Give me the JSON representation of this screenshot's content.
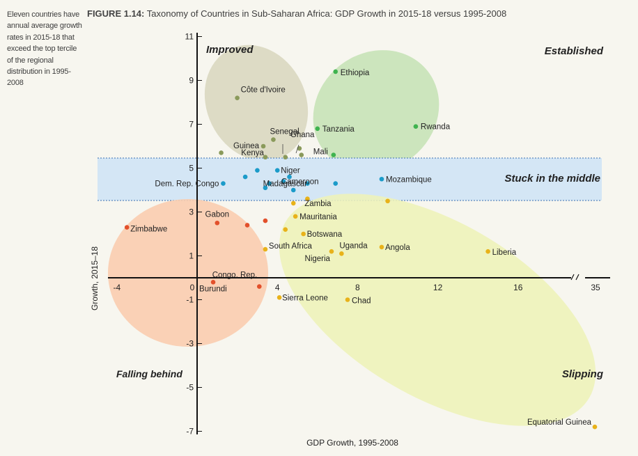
{
  "sidenote": "Eleven countries have annual average growth rates in 2015-18 that exceed the top tercile of the regional distribution in 1995-2008",
  "figure": {
    "label": "FIGURE 1.14:",
    "title": "Taxonomy of Countries in Sub-Saharan Africa: GDP Growth in 2015-18 versus 1995-2008"
  },
  "chart_data": {
    "type": "scatter",
    "xlabel": "GDP Growth, 1995-2008",
    "ylabel": "Growth, 2015–18",
    "x_ticks": [
      "-4",
      "0",
      "4",
      "8",
      "12",
      "16",
      "35"
    ],
    "y_ticks": [
      "11",
      "9",
      "7",
      "5",
      "3",
      "1",
      "-1",
      "-3",
      "-5",
      "-7"
    ],
    "quadrants": [
      "Improved",
      "Established",
      "Stuck in the middle",
      "Falling behind",
      "Slipping"
    ],
    "colors": {
      "improved": "#8a9a5b",
      "established": "#3fb34f",
      "stuck": "#1b9bc9",
      "falling": "#e2502b",
      "slipping": "#e8b21a"
    },
    "points": [
      {
        "name": "Ethiopia",
        "x": 6.9,
        "y": 9.4,
        "group": "established"
      },
      {
        "name": "Rwanda",
        "x": 10.9,
        "y": 6.9,
        "group": "established"
      },
      {
        "name": "Tanzania",
        "x": 6.0,
        "y": 6.8,
        "group": "established"
      },
      {
        "name": "Mali",
        "x": 6.8,
        "y": 5.6,
        "group": "established"
      },
      {
        "name": "Côte d'Ivoire",
        "x": 2.0,
        "y": 8.2,
        "group": "improved"
      },
      {
        "name": "Senegal",
        "x": 3.8,
        "y": 6.3,
        "group": "improved"
      },
      {
        "name": "Guinea",
        "x": 3.3,
        "y": 6.0,
        "group": "improved"
      },
      {
        "name": "Ghana",
        "x": 5.1,
        "y": 5.9,
        "group": "improved"
      },
      {
        "name": "Kenya",
        "x": 3.4,
        "y": 5.5,
        "group": "improved"
      },
      {
        "name": "",
        "x": 1.2,
        "y": 5.7,
        "group": "improved"
      },
      {
        "name": "",
        "x": 4.4,
        "y": 5.5,
        "group": "improved"
      },
      {
        "name": "",
        "x": 5.2,
        "y": 5.6,
        "group": "improved"
      },
      {
        "name": "Niger",
        "x": 4.0,
        "y": 4.9,
        "group": "stuck"
      },
      {
        "name": "Dem. Rep. Congo",
        "x": 1.3,
        "y": 4.3,
        "group": "stuck"
      },
      {
        "name": "Madagascar",
        "x": 3.6,
        "y": 4.3,
        "group": "stuck"
      },
      {
        "name": "Cameroon",
        "x": 4.3,
        "y": 4.4,
        "group": "stuck"
      },
      {
        "name": "Mozambique",
        "x": 9.2,
        "y": 4.5,
        "group": "stuck"
      },
      {
        "name": "",
        "x": 2.4,
        "y": 4.6,
        "group": "stuck"
      },
      {
        "name": "",
        "x": 3.0,
        "y": 4.9,
        "group": "stuck"
      },
      {
        "name": "",
        "x": 4.6,
        "y": 4.6,
        "group": "stuck"
      },
      {
        "name": "",
        "x": 5.5,
        "y": 4.3,
        "group": "stuck"
      },
      {
        "name": "",
        "x": 3.4,
        "y": 4.1,
        "group": "stuck"
      },
      {
        "name": "",
        "x": 4.8,
        "y": 4.0,
        "group": "stuck"
      },
      {
        "name": "",
        "x": 6.9,
        "y": 4.3,
        "group": "stuck"
      },
      {
        "name": "Zimbabwe",
        "x": -3.5,
        "y": 2.3,
        "group": "falling"
      },
      {
        "name": "Gabon",
        "x": 1.0,
        "y": 2.5,
        "group": "falling"
      },
      {
        "name": "Burundi",
        "x": 0.8,
        "y": -0.2,
        "group": "falling"
      },
      {
        "name": "Congo, Rep.",
        "x": 3.1,
        "y": -0.4,
        "group": "falling"
      },
      {
        "name": "",
        "x": 2.5,
        "y": 2.4,
        "group": "falling"
      },
      {
        "name": "",
        "x": 3.4,
        "y": 2.6,
        "group": "falling"
      },
      {
        "name": "Zambia",
        "x": 4.8,
        "y": 3.4,
        "group": "slipping"
      },
      {
        "name": "Mauritania",
        "x": 4.9,
        "y": 2.8,
        "group": "slipping"
      },
      {
        "name": "Botswana",
        "x": 5.3,
        "y": 2.0,
        "group": "slipping"
      },
      {
        "name": "South Africa",
        "x": 3.4,
        "y": 1.3,
        "group": "slipping"
      },
      {
        "name": "Uganda",
        "x": 7.2,
        "y": 1.1,
        "group": "slipping"
      },
      {
        "name": "Nigeria",
        "x": 6.7,
        "y": 1.2,
        "group": "slipping"
      },
      {
        "name": "Angola",
        "x": 9.2,
        "y": 1.4,
        "group": "slipping"
      },
      {
        "name": "Liberia",
        "x": 14.5,
        "y": 1.2,
        "group": "slipping"
      },
      {
        "name": "Sierra Leone",
        "x": 4.1,
        "y": -0.9,
        "group": "slipping"
      },
      {
        "name": "Chad",
        "x": 7.5,
        "y": -1.0,
        "group": "slipping"
      },
      {
        "name": "Equatorial Guinea",
        "x": 34.8,
        "y": -6.8,
        "group": "slipping"
      },
      {
        "name": "",
        "x": 5.5,
        "y": 3.6,
        "group": "slipping"
      },
      {
        "name": "",
        "x": 9.5,
        "y": 3.5,
        "group": "slipping"
      },
      {
        "name": "",
        "x": 4.4,
        "y": 2.2,
        "group": "slipping"
      }
    ]
  }
}
